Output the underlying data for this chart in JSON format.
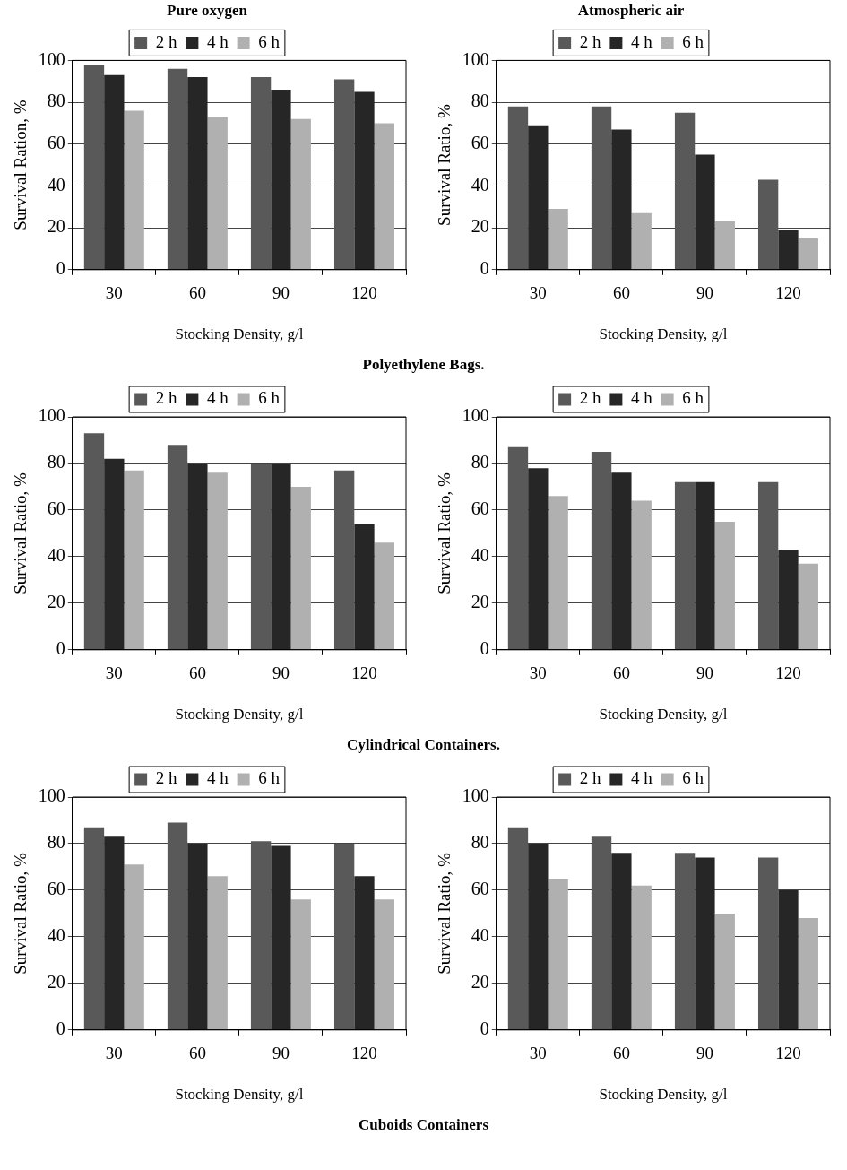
{
  "chart_data": [
    {
      "type": "bar",
      "title": "Pure oxygen",
      "xlabel": "Stocking Density, g/l",
      "ylabel": "Survival Ration, %",
      "categories": [
        "30",
        "60",
        "90",
        "120"
      ],
      "series": [
        {
          "name": "2 h",
          "color": "#595959",
          "values": [
            98,
            96,
            92,
            91
          ]
        },
        {
          "name": "4 h",
          "color": "#262626",
          "values": [
            93,
            92,
            86,
            85
          ]
        },
        {
          "name": "6 h",
          "color": "#b0b0b0",
          "values": [
            76,
            73,
            72,
            70
          ]
        }
      ],
      "ylim": [
        0,
        100
      ],
      "yticks": [
        0,
        20,
        40,
        60,
        80,
        100
      ],
      "grid": "y",
      "legend": "top"
    },
    {
      "type": "bar",
      "title": "Atmospheric air",
      "xlabel": "Stocking Density, g/l",
      "ylabel": "Survival Ratio, %",
      "categories": [
        "30",
        "60",
        "90",
        "120"
      ],
      "series": [
        {
          "name": "2 h",
          "color": "#595959",
          "values": [
            78,
            78,
            75,
            43
          ]
        },
        {
          "name": "4 h",
          "color": "#262626",
          "values": [
            69,
            67,
            55,
            19
          ]
        },
        {
          "name": "6 h",
          "color": "#b0b0b0",
          "values": [
            29,
            27,
            23,
            15
          ]
        }
      ],
      "ylim": [
        0,
        100
      ],
      "yticks": [
        0,
        20,
        40,
        60,
        80,
        100
      ],
      "grid": "y",
      "legend": "top",
      "annotations": [
        "Polyethylene Bags."
      ]
    },
    {
      "type": "bar",
      "xlabel": "Stocking Density, g/l",
      "ylabel": "Survival Ratio, %",
      "categories": [
        "30",
        "60",
        "90",
        "120"
      ],
      "series": [
        {
          "name": "2 h",
          "color": "#595959",
          "values": [
            93,
            88,
            80,
            77
          ]
        },
        {
          "name": "4 h",
          "color": "#262626",
          "values": [
            82,
            80,
            80,
            54
          ]
        },
        {
          "name": "6 h",
          "color": "#b0b0b0",
          "values": [
            77,
            76,
            70,
            46
          ]
        }
      ],
      "ylim": [
        0,
        100
      ],
      "yticks": [
        0,
        20,
        40,
        60,
        80,
        100
      ],
      "grid": "y",
      "legend": "top"
    },
    {
      "type": "bar",
      "xlabel": "Stocking Density, g/l",
      "ylabel": "Survival Ratio, %",
      "categories": [
        "30",
        "60",
        "90",
        "120"
      ],
      "series": [
        {
          "name": "2 h",
          "color": "#595959",
          "values": [
            87,
            85,
            72,
            72
          ]
        },
        {
          "name": "4 h",
          "color": "#262626",
          "values": [
            78,
            76,
            72,
            43
          ]
        },
        {
          "name": "6 h",
          "color": "#b0b0b0",
          "values": [
            66,
            64,
            55,
            37
          ]
        }
      ],
      "ylim": [
        0,
        100
      ],
      "yticks": [
        0,
        20,
        40,
        60,
        80,
        100
      ],
      "grid": "y",
      "legend": "top",
      "annotations": [
        "Cylindrical Containers."
      ]
    },
    {
      "type": "bar",
      "xlabel": "Stocking Density, g/l",
      "ylabel": "Survival Ratio, %",
      "categories": [
        "30",
        "60",
        "90",
        "120"
      ],
      "series": [
        {
          "name": "2 h",
          "color": "#595959",
          "values": [
            87,
            89,
            81,
            80
          ]
        },
        {
          "name": "4 h",
          "color": "#262626",
          "values": [
            83,
            80,
            79,
            66
          ]
        },
        {
          "name": "6 h",
          "color": "#b0b0b0",
          "values": [
            71,
            66,
            56,
            56
          ]
        }
      ],
      "ylim": [
        0,
        100
      ],
      "yticks": [
        0,
        20,
        40,
        60,
        80,
        100
      ],
      "grid": "y",
      "legend": "top"
    },
    {
      "type": "bar",
      "xlabel": "Stocking Density, g/l",
      "ylabel": "Survival Ratio, %",
      "categories": [
        "30",
        "60",
        "90",
        "120"
      ],
      "series": [
        {
          "name": "2 h",
          "color": "#595959",
          "values": [
            87,
            83,
            76,
            74
          ]
        },
        {
          "name": "4 h",
          "color": "#262626",
          "values": [
            80,
            76,
            74,
            60
          ]
        },
        {
          "name": "6 h",
          "color": "#b0b0b0",
          "values": [
            65,
            62,
            50,
            48
          ]
        }
      ],
      "ylim": [
        0,
        100
      ],
      "yticks": [
        0,
        20,
        40,
        60,
        80,
        100
      ],
      "grid": "y",
      "legend": "top",
      "annotations": [
        "Cuboids Containers"
      ]
    }
  ]
}
